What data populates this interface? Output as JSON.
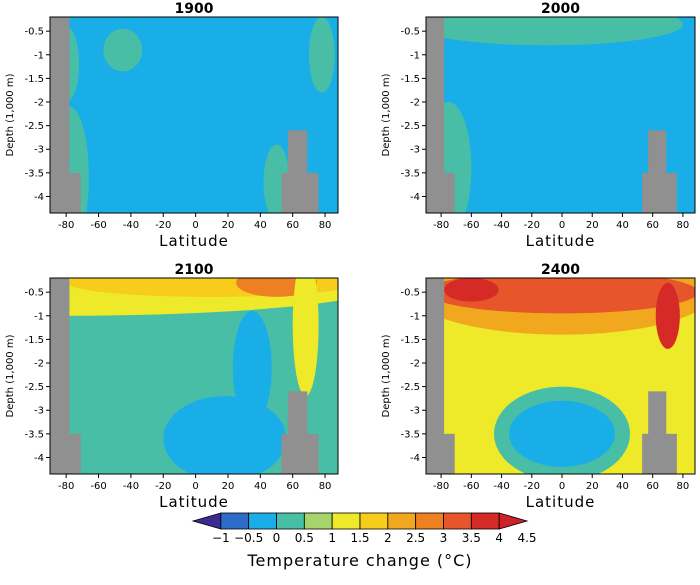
{
  "chart_data": {
    "type": "heatmap",
    "colorbar": {
      "title": "Temperature change (°C)",
      "levels": [
        -1,
        -0.5,
        0,
        0.5,
        1,
        1.5,
        2,
        2.5,
        3,
        3.5,
        4,
        4.5
      ],
      "labels": [
        "−1",
        "−0.5",
        "0",
        "0.5",
        "1",
        "1.5",
        "2",
        "2.5",
        "3",
        "3.5",
        "4",
        "4.5"
      ],
      "colors": [
        "#3a2c90",
        "#2d6cc8",
        "#1aaee8",
        "#48bea6",
        "#a6d46a",
        "#eeea2a",
        "#f7cc1a",
        "#f2a81e",
        "#ee8022",
        "#e6562a",
        "#d52a26",
        "#cc2228"
      ]
    },
    "axes": {
      "xlabel": "Latitude",
      "ylabel": "Depth (1,000 m)",
      "xlim": [
        -90,
        88
      ],
      "ylim": [
        -4.35,
        -0.2
      ],
      "xticks": [
        -80,
        -60,
        -40,
        -20,
        0,
        20,
        40,
        60,
        80
      ],
      "yticks": [
        -0.5,
        -1,
        -1.5,
        -2,
        -2.5,
        -3,
        -3.5,
        -4
      ]
    },
    "panels": [
      {
        "title": "1900",
        "base": 0.25,
        "anomalies": [
          {
            "lat": -45,
            "depth": -0.9,
            "rx": 12,
            "ry": 0.45,
            "val": 0.8
          },
          {
            "lat": -78,
            "depth": -3.6,
            "rx": 12,
            "ry": 1.5,
            "val": 0.8
          },
          {
            "lat": -80,
            "depth": -1.2,
            "rx": 8,
            "ry": 0.8,
            "val": 0.8
          },
          {
            "lat": 78,
            "depth": -1.0,
            "rx": 8,
            "ry": 0.8,
            "val": 0.8
          },
          {
            "lat": 50,
            "depth": -3.7,
            "rx": 8,
            "ry": 0.8,
            "val": 0.8
          }
        ]
      },
      {
        "title": "2000",
        "base": 0.25,
        "anomalies": [
          {
            "lat": -10,
            "depth": -0.35,
            "rx": 50,
            "ry": 0.25,
            "val": 1.2
          },
          {
            "lat": -10,
            "depth": -0.35,
            "rx": 90,
            "ry": 0.45,
            "val": 0.8
          },
          {
            "lat": -75,
            "depth": -3.4,
            "rx": 15,
            "ry": 1.4,
            "val": 0.8
          }
        ]
      },
      {
        "title": "2100",
        "base": 0.8,
        "anomalies": [
          {
            "lat": -80,
            "depth": -0.3,
            "rx": 200,
            "ry": 0.7,
            "val": 1.8
          },
          {
            "lat": 10,
            "depth": -0.3,
            "rx": 90,
            "ry": 0.3,
            "val": 2.4
          },
          {
            "lat": 50,
            "depth": -0.3,
            "rx": 25,
            "ry": 0.3,
            "val": 3.2
          },
          {
            "lat": 68,
            "depth": -1.2,
            "rx": 8,
            "ry": 1.5,
            "val": 1.8
          },
          {
            "lat": 18,
            "depth": -3.6,
            "rx": 38,
            "ry": 0.9,
            "val": 0.25
          },
          {
            "lat": 35,
            "depth": -2.1,
            "rx": 12,
            "ry": 1.2,
            "val": 0.25
          }
        ]
      },
      {
        "title": "2400",
        "base": 1.8,
        "anomalies": [
          {
            "lat": 0,
            "depth": -0.5,
            "rx": 100,
            "ry": 0.9,
            "val": 2.7
          },
          {
            "lat": 0,
            "depth": -0.5,
            "rx": 90,
            "ry": 0.45,
            "val": 3.6
          },
          {
            "lat": -60,
            "depth": -0.45,
            "rx": 18,
            "ry": 0.25,
            "val": 4.2
          },
          {
            "lat": 70,
            "depth": -1.0,
            "rx": 8,
            "ry": 0.7,
            "val": 4.2
          },
          {
            "lat": 0,
            "depth": -3.5,
            "rx": 45,
            "ry": 1.0,
            "val": 0.8
          },
          {
            "lat": 0,
            "depth": -3.5,
            "rx": 35,
            "ry": 0.7,
            "val": 0.25
          }
        ]
      }
    ],
    "land": [
      {
        "lat0": -90,
        "lat1": -78,
        "depth0": -4.35,
        "depth1": -0.2
      },
      {
        "lat0": -90,
        "lat1": -71,
        "depth0": -4.35,
        "depth1": -3.5
      },
      {
        "lat0": 57,
        "lat1": 69,
        "depth0": -4.35,
        "depth1": -2.6
      },
      {
        "lat0": 53,
        "lat1": 76,
        "depth0": -4.35,
        "depth1": -3.5
      }
    ],
    "land_color": "#909090"
  }
}
